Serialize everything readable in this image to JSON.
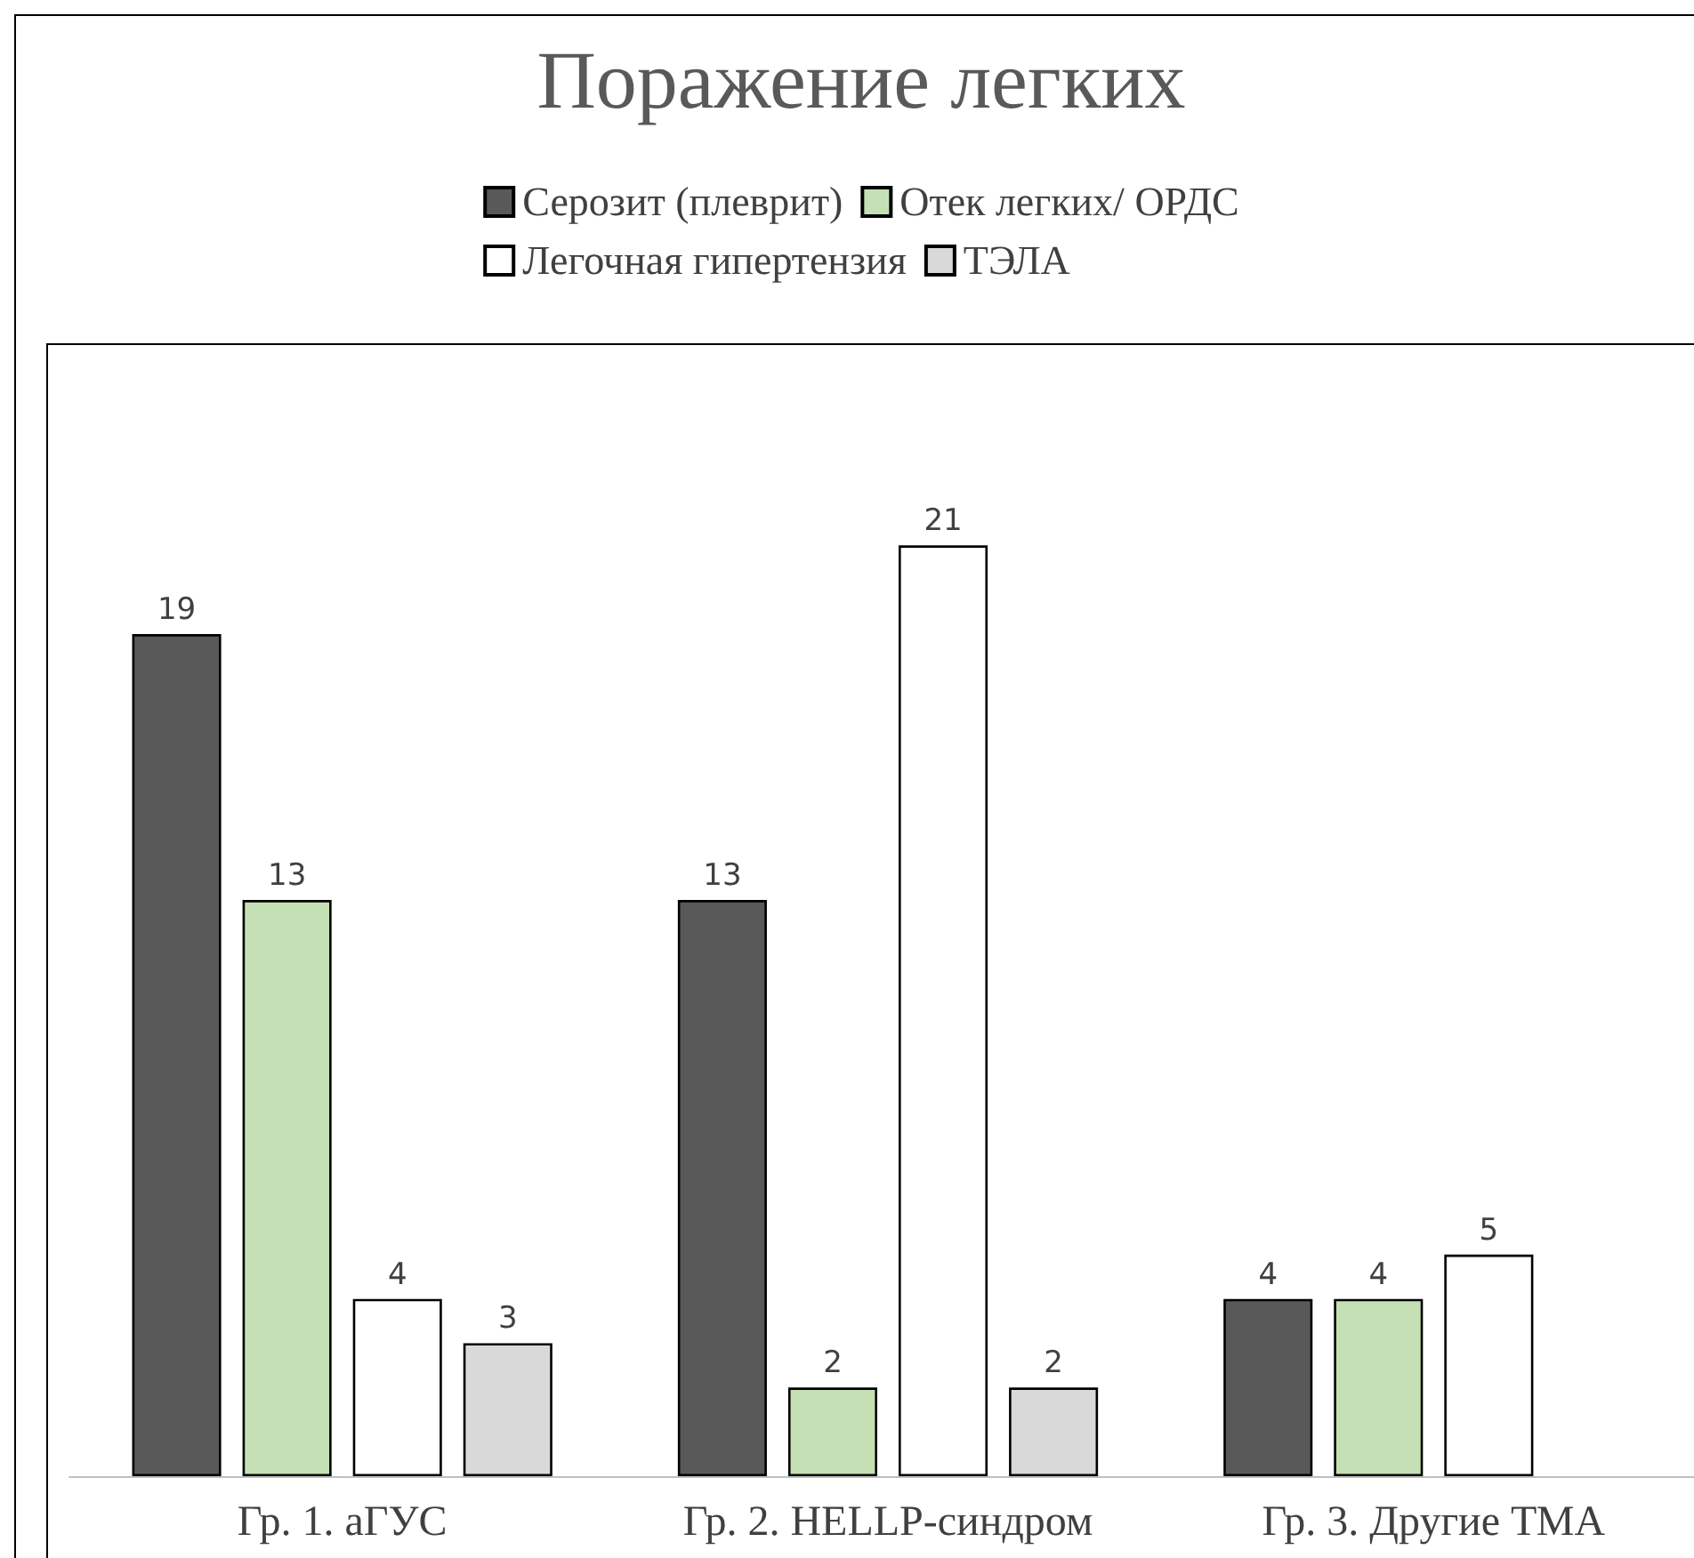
{
  "chart_data": {
    "type": "bar",
    "title": "Поражение легких",
    "categories": [
      "Гр. 1. аГУС",
      "Гр. 2. HELLP-синдром",
      "Гр. 3. Другие ТМА"
    ],
    "series": [
      {
        "name": "Серозит (плеврит)",
        "color": "#595959",
        "values": [
          19,
          13,
          4
        ]
      },
      {
        "name": "Отек легких/ ОРДС",
        "color": "#c5e0b4",
        "values": [
          13,
          2,
          4
        ]
      },
      {
        "name": "Легочная гипертензия",
        "color": "#ffffff",
        "values": [
          4,
          21,
          5
        ]
      },
      {
        "name": "ТЭЛА",
        "color": "#d9d9d9",
        "values": [
          3,
          2,
          null
        ]
      }
    ],
    "data_labels": true,
    "legend": "top"
  }
}
